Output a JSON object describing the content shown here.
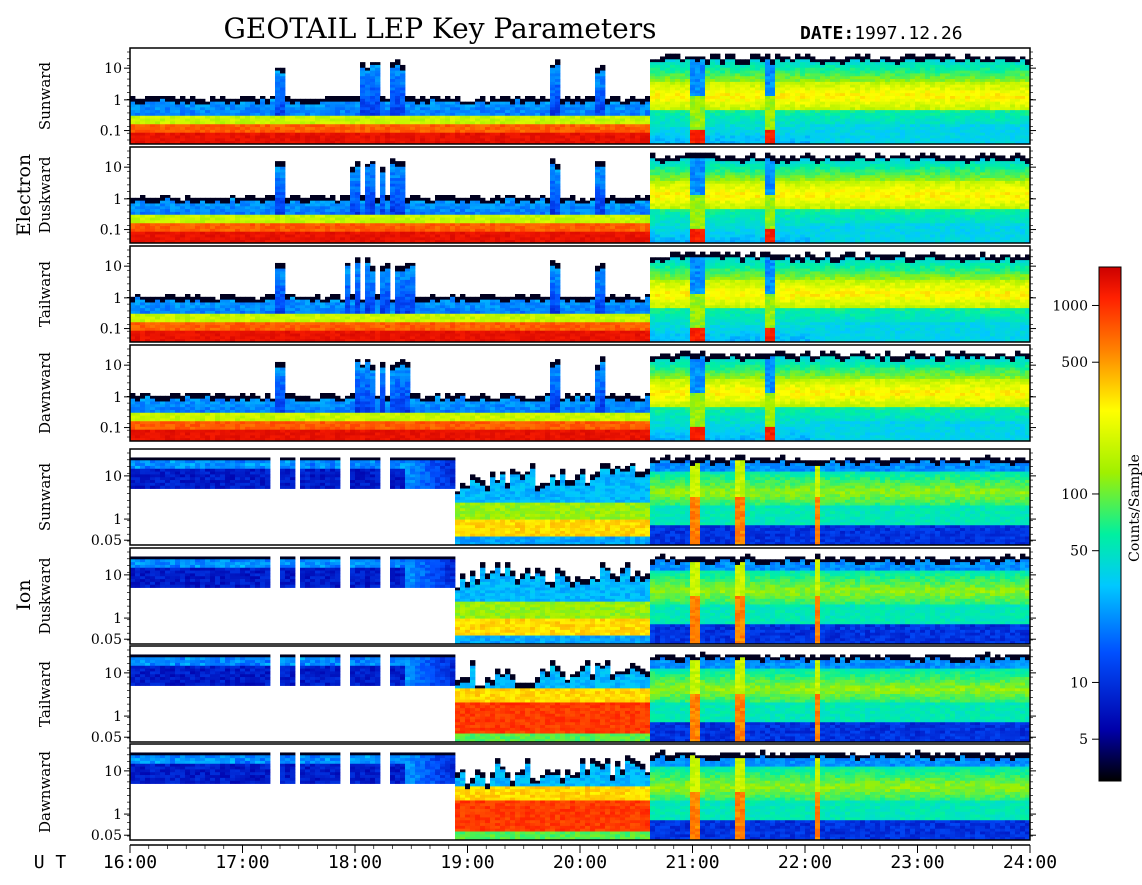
{
  "header": {
    "title": "GEOTAIL LEP Key Parameters",
    "date_label": "DATE:",
    "date_value": "1997.12.26"
  },
  "x_axis": {
    "label": "U T",
    "ticks": [
      "16:00",
      "17:00",
      "18:00",
      "19:00",
      "20:00",
      "21:00",
      "22:00",
      "23:00",
      "24:00"
    ]
  },
  "groups": [
    {
      "label": "Electron",
      "ticks": [
        "10",
        "1",
        "0.1"
      ]
    },
    {
      "label": "Ion",
      "ticks": [
        "10",
        "1",
        "0.05"
      ]
    }
  ],
  "colorbar": {
    "label": "Counts/Sample",
    "ticks": [
      "1000",
      "500",
      "100",
      "50",
      "10",
      "5"
    ],
    "tick_values": [
      1000,
      500,
      100,
      50,
      10,
      5
    ],
    "range": [
      3,
      1600
    ],
    "scale": "log"
  },
  "chart_data": {
    "type": "heatmap",
    "title": "GEOTAIL LEP Key Parameters",
    "date": "1997.12.26",
    "x_unit": "UT",
    "xlim": [
      "16:00",
      "24:00"
    ],
    "color_scale": "log",
    "panels": [
      {
        "species": "Electron",
        "direction": "Sunward",
        "y_ticks": [
          10,
          1,
          0.1
        ],
        "scale": "log"
      },
      {
        "species": "Electron",
        "direction": "Duskward",
        "y_ticks": [
          10,
          1,
          0.1
        ],
        "scale": "log"
      },
      {
        "species": "Electron",
        "direction": "Tailward",
        "y_ticks": [
          10,
          1,
          0.1
        ],
        "scale": "log"
      },
      {
        "species": "Electron",
        "direction": "Dawnward",
        "y_ticks": [
          10,
          1,
          0.1
        ],
        "scale": "log"
      },
      {
        "species": "Ion",
        "direction": "Sunward",
        "y_ticks": [
          10,
          1,
          0.05
        ],
        "scale": "log"
      },
      {
        "species": "Ion",
        "direction": "Duskward",
        "y_ticks": [
          10,
          1,
          0.05
        ],
        "scale": "log"
      },
      {
        "species": "Ion",
        "direction": "Tailward",
        "y_ticks": [
          10,
          1,
          0.05
        ],
        "scale": "log"
      },
      {
        "species": "Ion",
        "direction": "Dawnward",
        "y_ticks": [
          10,
          1,
          0.05
        ],
        "scale": "log"
      }
    ]
  },
  "colors": {
    "colormap": [
      "#000000",
      "#0000aa",
      "#0050ff",
      "#00c8ff",
      "#00f0a0",
      "#a0f000",
      "#ffff00",
      "#ff8000",
      "#ff2000",
      "#cc0000"
    ]
  }
}
